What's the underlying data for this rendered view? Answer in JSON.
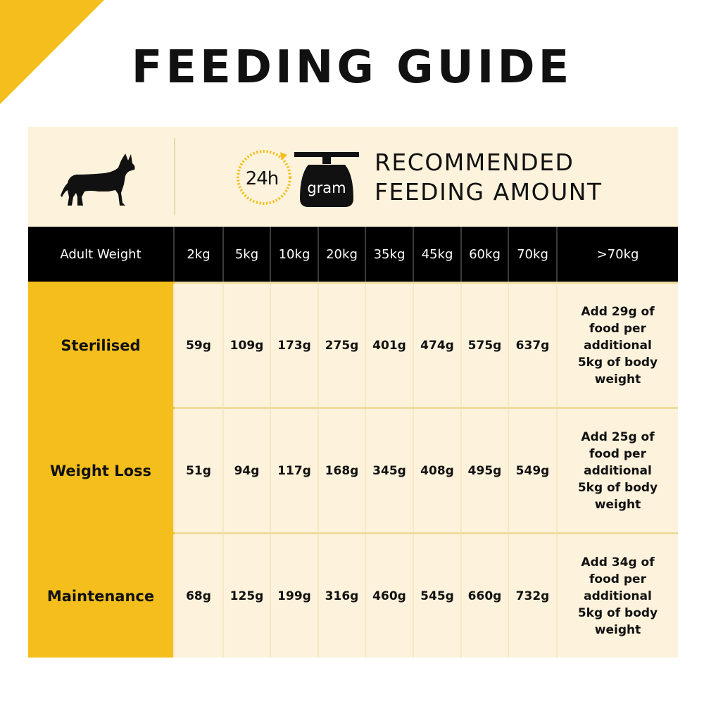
{
  "page": {
    "title": "FEEDING GUIDE",
    "accent_color": "#f4bf1d",
    "panel_color": "#fdf3dc"
  },
  "header": {
    "dog_icon": "dog-silhouette-icon",
    "clock_icon": "clock-icon",
    "clock_label": "24h",
    "scale_icon": "scale-icon",
    "scale_label": "gram",
    "recommended_line1": "RECOMMENDED",
    "recommended_line2": "FEEDING AMOUNT"
  },
  "table": {
    "weight_header": "Adult Weight",
    "weights": [
      "2kg",
      "5kg",
      "10kg",
      "20kg",
      "35kg",
      "45kg",
      "60kg",
      "70kg",
      ">70kg"
    ],
    "rows": [
      {
        "label": "Sterilised",
        "values": [
          "59g",
          "109g",
          "173g",
          "275g",
          "401g",
          "474g",
          "575g",
          "637g"
        ],
        "note": [
          "Add 29g of",
          "food per",
          "additional",
          "5kg of body",
          "weight"
        ]
      },
      {
        "label": "Weight Loss",
        "values": [
          "51g",
          "94g",
          "117g",
          "168g",
          "345g",
          "408g",
          "495g",
          "549g"
        ],
        "note": [
          "Add 25g of",
          "food per",
          "additional",
          "5kg of body",
          "weight"
        ]
      },
      {
        "label": "Maintenance",
        "values": [
          "68g",
          "125g",
          "199g",
          "316g",
          "460g",
          "545g",
          "660g",
          "732g"
        ],
        "note": [
          "Add 34g of",
          "food per",
          "additional",
          "5kg of body",
          "weight"
        ]
      }
    ]
  }
}
